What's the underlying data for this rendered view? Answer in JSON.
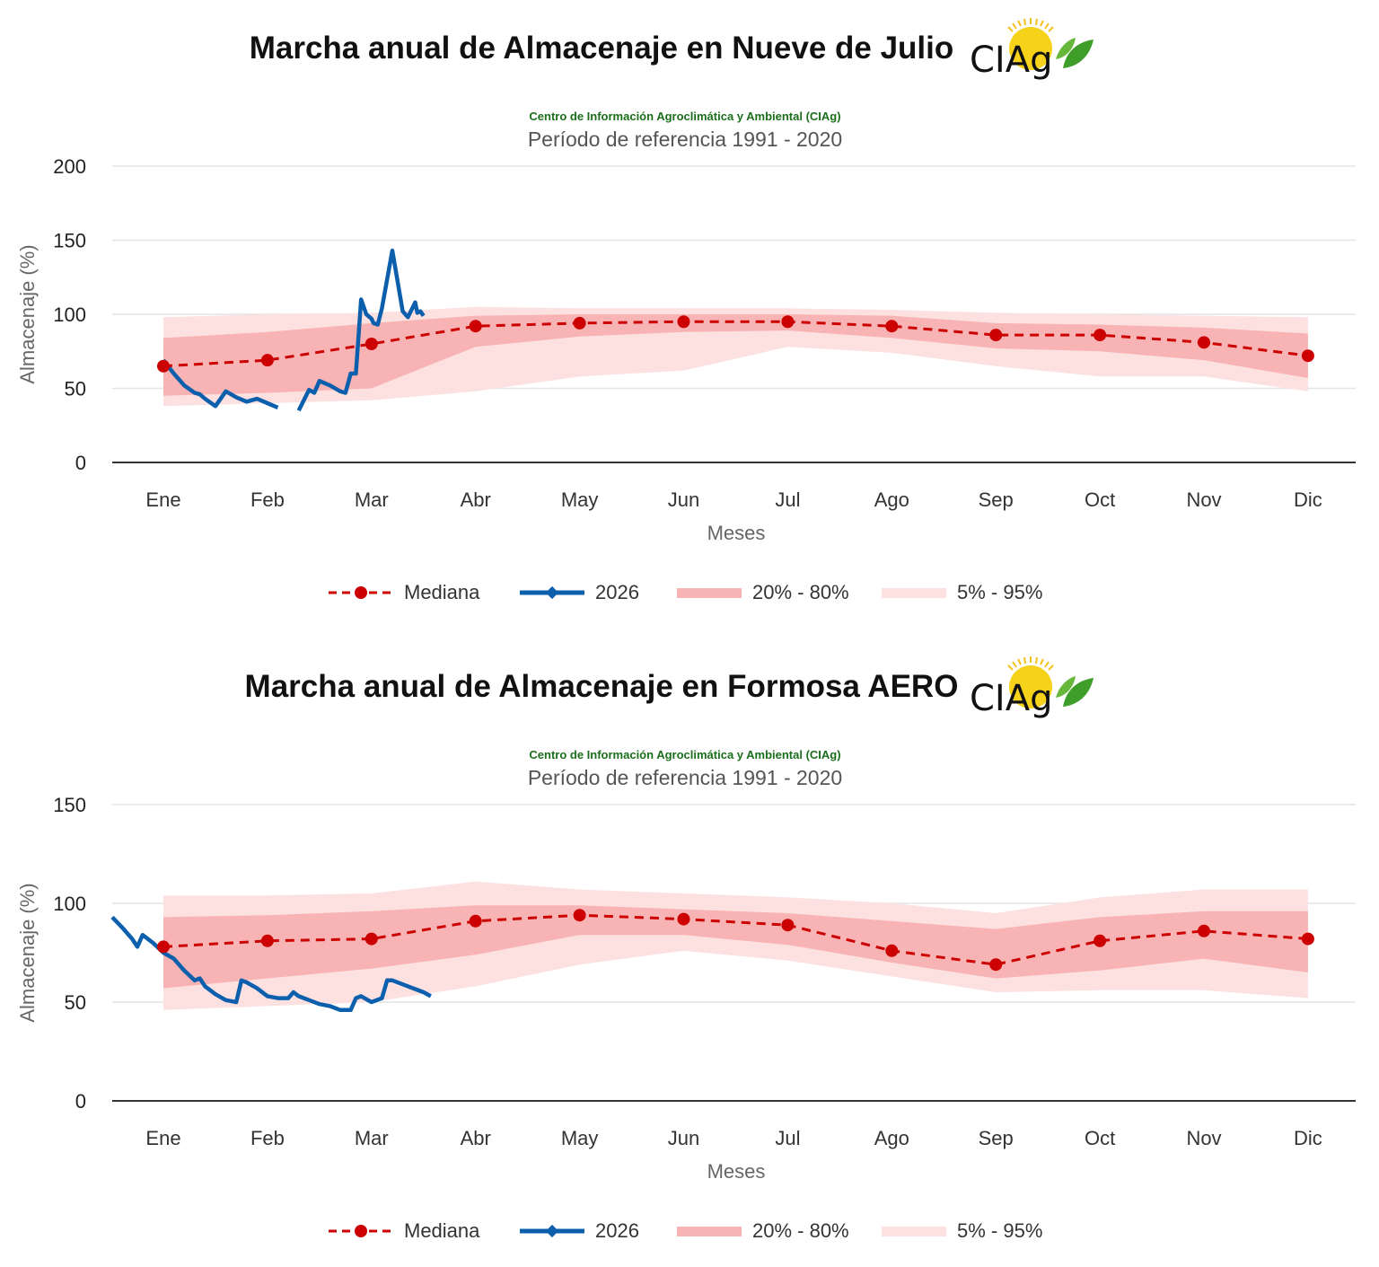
{
  "source_text": "Centro de Información Agroclimática y Ambiental (CIAg)",
  "subtitle": "Período de referencia 1991 - 2020",
  "logo_text": "CIAg",
  "colors": {
    "median": "#cc0000",
    "current": "#0b5fad",
    "band_20_80": "#f8b4b4",
    "band_5_95": "#fde0e0",
    "grid": "#e4e4e4",
    "axis": "#333333"
  },
  "legend": {
    "median": "Mediana",
    "current": "2026",
    "band_20_80": "20% - 80%",
    "band_5_95": "5% - 95%"
  },
  "chart_data": [
    {
      "type": "line",
      "title": "Marcha anual de Almacenaje en Nueve de Julio",
      "xlabel": "Meses",
      "ylabel": "Almacenaje (%)",
      "categories": [
        "Ene",
        "Feb",
        "Mar",
        "Abr",
        "May",
        "Jun",
        "Jul",
        "Ago",
        "Sep",
        "Oct",
        "Nov",
        "Dic"
      ],
      "ylim": [
        0,
        200
      ],
      "yticks": [
        0,
        50,
        100,
        150,
        200
      ],
      "grid": true,
      "legend_position": "bottom",
      "series": [
        {
          "name": "Mediana",
          "values": [
            65,
            69,
            80,
            92,
            94,
            95,
            95,
            92,
            86,
            86,
            81,
            72
          ]
        },
        {
          "name": "2026",
          "x": [
            0.0,
            0.1,
            0.2,
            0.3,
            0.35,
            0.4,
            0.5,
            0.6,
            0.7,
            0.8,
            0.9,
            1.0,
            1.1,
            1.2,
            1.3,
            1.4,
            1.45,
            1.5,
            1.6,
            1.7,
            1.75,
            1.8,
            1.85,
            1.9,
            1.95,
            2.0,
            2.02,
            2.06,
            2.1,
            2.2,
            2.3,
            2.35,
            2.42,
            2.44,
            2.47,
            2.5,
            2.53,
            2.55,
            2.58,
            2.6
          ],
          "values": [
            69,
            60,
            52,
            47,
            46,
            43,
            38,
            48,
            44,
            41,
            43,
            40,
            37,
            null,
            35,
            49,
            47,
            55,
            52,
            48,
            47,
            60,
            60,
            110,
            100,
            97,
            94,
            93,
            104,
            143,
            102,
            98,
            108,
            101,
            102,
            99,
            null,
            null,
            null,
            null
          ]
        }
      ],
      "bands": {
        "p20_80": {
          "low": [
            45,
            47,
            50,
            78,
            85,
            88,
            89,
            84,
            77,
            75,
            69,
            57
          ],
          "high": [
            84,
            88,
            94,
            99,
            100,
            100,
            100,
            99,
            94,
            93,
            91,
            87
          ]
        },
        "p5_95": {
          "low": [
            38,
            40,
            42,
            48,
            58,
            62,
            78,
            74,
            65,
            58,
            58,
            48
          ],
          "high": [
            98,
            100,
            101,
            105,
            104,
            104,
            104,
            103,
            101,
            100,
            99,
            98
          ]
        }
      }
    },
    {
      "type": "line",
      "title": "Marcha anual de Almacenaje en Formosa AERO",
      "xlabel": "Meses",
      "ylabel": "Almacenaje (%)",
      "categories": [
        "Ene",
        "Feb",
        "Mar",
        "Abr",
        "May",
        "Jun",
        "Jul",
        "Ago",
        "Sep",
        "Oct",
        "Nov",
        "Dic"
      ],
      "ylim": [
        0,
        150
      ],
      "yticks": [
        0,
        50,
        100,
        150
      ],
      "grid": true,
      "legend_position": "bottom",
      "series": [
        {
          "name": "Mediana",
          "values": [
            78,
            81,
            82,
            91,
            94,
            92,
            89,
            76,
            69,
            81,
            86,
            82
          ]
        },
        {
          "name": "2026",
          "x": [
            -0.5,
            -0.4,
            -0.3,
            -0.25,
            -0.2,
            -0.1,
            0.0,
            0.1,
            0.2,
            0.3,
            0.35,
            0.4,
            0.5,
            0.6,
            0.7,
            0.75,
            0.8,
            0.9,
            1.0,
            1.1,
            1.2,
            1.25,
            1.3,
            1.4,
            1.5,
            1.6,
            1.7,
            1.8,
            1.85,
            1.9,
            2.0,
            2.1,
            2.15,
            2.2,
            2.3,
            2.4,
            2.5,
            2.57
          ],
          "values": [
            93,
            88,
            82,
            78,
            84,
            80,
            75,
            72,
            66,
            61,
            62,
            58,
            54,
            51,
            50,
            61,
            60,
            57,
            53,
            52,
            52,
            55,
            53,
            51,
            49,
            48,
            46,
            46,
            52,
            53,
            50,
            52,
            61,
            61,
            59,
            57,
            55,
            53
          ]
        }
      ],
      "bands": {
        "p20_80": {
          "low": [
            57,
            62,
            67,
            74,
            84,
            84,
            79,
            70,
            62,
            66,
            72,
            65
          ],
          "high": [
            93,
            94,
            96,
            99,
            99,
            97,
            95,
            91,
            87,
            93,
            96,
            96
          ]
        },
        "p5_95": {
          "low": [
            46,
            48,
            50,
            58,
            69,
            76,
            71,
            63,
            55,
            56,
            56,
            52
          ],
          "high": [
            104,
            104,
            105,
            111,
            107,
            105,
            103,
            100,
            95,
            103,
            107,
            107
          ]
        }
      }
    }
  ]
}
